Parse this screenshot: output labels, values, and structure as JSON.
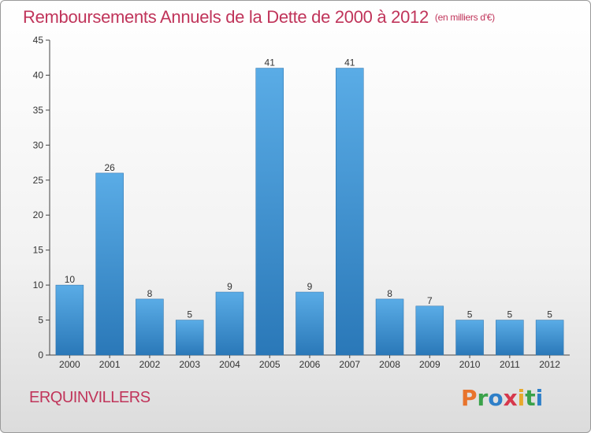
{
  "header": {
    "title": "Remboursements Annuels de la Dette de 2000 à 2012",
    "subtitle": "(en milliers d'€)"
  },
  "footer": {
    "commune": "ERQUINVILLERS",
    "logo_text": "Proxiti",
    "logo_letters": [
      {
        "char": "P",
        "color": "#e8742c"
      },
      {
        "char": "r",
        "color": "#3aa24a"
      },
      {
        "char": "o",
        "color": "#2e7fc8"
      },
      {
        "char": "x",
        "color": "#d6384c"
      },
      {
        "char": "i",
        "color": "#e8a92c"
      },
      {
        "char": "t",
        "color": "#3aa24a"
      },
      {
        "char": "i",
        "color": "#2e7fc8"
      }
    ]
  },
  "colors": {
    "accent": "#c0345a",
    "bar_top": "#5aace6",
    "bar_bottom": "#2a78b8"
  },
  "chart_data": {
    "type": "bar",
    "title": "Remboursements Annuels de la Dette de 2000 à 2012",
    "subtitle": "(en milliers d'€)",
    "categories": [
      "2000",
      "2001",
      "2002",
      "2003",
      "2004",
      "2005",
      "2006",
      "2007",
      "2008",
      "2009",
      "2010",
      "2011",
      "2012"
    ],
    "values": [
      10,
      26,
      8,
      5,
      9,
      41,
      9,
      41,
      8,
      7,
      5,
      5,
      5
    ],
    "ylim": [
      0,
      45
    ],
    "yticks": [
      0,
      5,
      10,
      15,
      20,
      25,
      30,
      35,
      40,
      45
    ],
    "xlabel": "",
    "ylabel": "",
    "grid": false,
    "data_labels": true
  }
}
